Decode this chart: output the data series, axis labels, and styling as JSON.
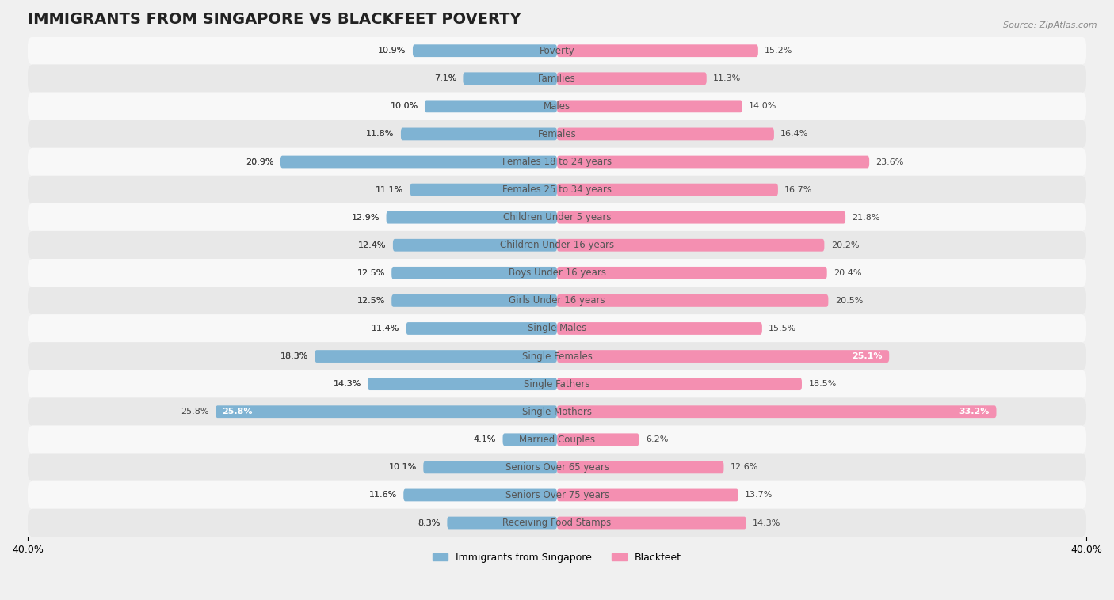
{
  "title": "IMMIGRANTS FROM SINGAPORE VS BLACKFEET POVERTY",
  "source": "Source: ZipAtlas.com",
  "categories": [
    "Poverty",
    "Families",
    "Males",
    "Females",
    "Females 18 to 24 years",
    "Females 25 to 34 years",
    "Children Under 5 years",
    "Children Under 16 years",
    "Boys Under 16 years",
    "Girls Under 16 years",
    "Single Males",
    "Single Females",
    "Single Fathers",
    "Single Mothers",
    "Married Couples",
    "Seniors Over 65 years",
    "Seniors Over 75 years",
    "Receiving Food Stamps"
  ],
  "left_values": [
    10.9,
    7.1,
    10.0,
    11.8,
    20.9,
    11.1,
    12.9,
    12.4,
    12.5,
    12.5,
    11.4,
    18.3,
    14.3,
    25.8,
    4.1,
    10.1,
    11.6,
    8.3
  ],
  "right_values": [
    15.2,
    11.3,
    14.0,
    16.4,
    23.6,
    16.7,
    21.8,
    20.2,
    20.4,
    20.5,
    15.5,
    25.1,
    18.5,
    33.2,
    6.2,
    12.6,
    13.7,
    14.3
  ],
  "left_color": "#7fb3d3",
  "right_color": "#f48fb1",
  "left_color_dark": "#5a9abf",
  "right_color_dark": "#e91e8c",
  "left_label": "Immigrants from Singapore",
  "right_label": "Blackfeet",
  "axis_limit": 40.0,
  "background_color": "#f0f0f0",
  "row_bg_light": "#f8f8f8",
  "row_bg_dark": "#e8e8e8",
  "bar_height": 0.45,
  "title_fontsize": 14,
  "label_fontsize": 8.5,
  "value_fontsize": 8,
  "tick_fontsize": 9
}
